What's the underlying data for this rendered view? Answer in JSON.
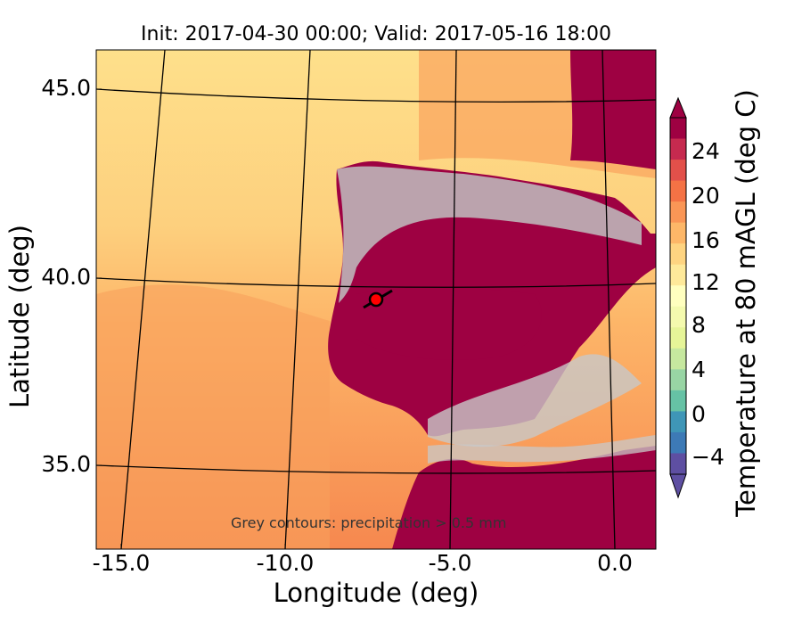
{
  "title": "Init: 2017-04-30 00:00; Valid: 2017-05-16 18:00",
  "x_axis": {
    "label": "Longitude (deg)",
    "ticks": [
      "-15.0",
      "-10.0",
      "-5.0",
      "0.0"
    ]
  },
  "y_axis": {
    "label": "Latitude (deg)",
    "ticks": [
      "45.0",
      "40.0",
      "35.0"
    ]
  },
  "colorbar": {
    "label": "Temperature at 80 mAGL (deg C)",
    "ticks": [
      "24",
      "20",
      "16",
      "12",
      "8",
      "4",
      "0",
      "−4"
    ],
    "colormap": [
      "#5e4fa2",
      "#3d7ab6",
      "#3f96b7",
      "#66c2a5",
      "#98d5a4",
      "#c6e89f",
      "#e6f598",
      "#f4faae",
      "#ffffbf",
      "#fee99a",
      "#fed481",
      "#fdb768",
      "#fa9656",
      "#f47245",
      "#e2504a",
      "#c62a4f",
      "#9e0142"
    ]
  },
  "annotation": "Grey contours: precipitation > 0.5 mm",
  "marker": {
    "lon": -7.6,
    "lat": 39.3,
    "color": "#ff0000"
  },
  "colors": {
    "sea_north": "#fee08b",
    "sea_mid": "#fdbe6c",
    "sea_south": "#f68d52",
    "land_hot": "#9e0142",
    "contour": "#c8c8c8"
  }
}
